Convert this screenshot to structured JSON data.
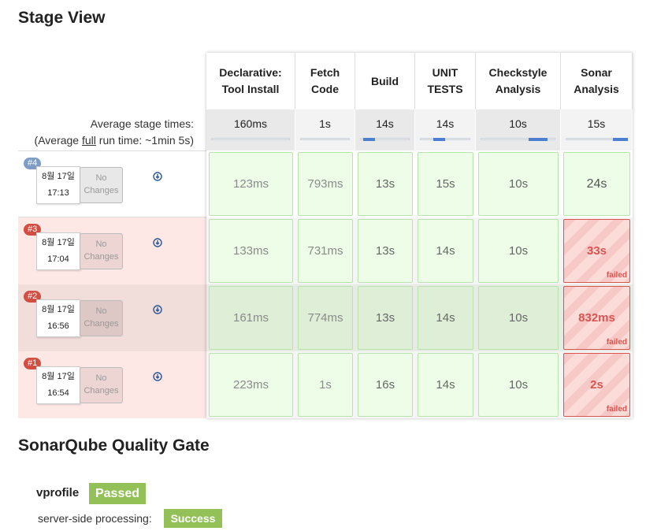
{
  "stage_view": {
    "title": "Stage View",
    "avg_label": "Average stage times:",
    "avg_full_prefix": "(Average ",
    "avg_full_link": "full",
    "avg_full_suffix": " run time: ~1min 5s)",
    "stages": [
      {
        "name_line1": "Declarative:",
        "name_line2": "Tool Install",
        "avg": "160ms",
        "bar_fraction": 0.0
      },
      {
        "name_line1": "Fetch",
        "name_line2": "Code",
        "avg": "1s",
        "bar_fraction": 0.0
      },
      {
        "name_line1": "Build",
        "name_line2": "",
        "avg": "14s",
        "bar_fraction": 0.25
      },
      {
        "name_line1": "UNIT",
        "name_line2": "TESTS",
        "avg": "14s",
        "bar_fraction": 0.25
      },
      {
        "name_line1": "Checkstyle",
        "name_line2": "Analysis",
        "avg": "10s",
        "bar_fraction": 0.25
      },
      {
        "name_line1": "Sonar",
        "name_line2": "Analysis",
        "avg": "15s",
        "bar_fraction": 0.25
      }
    ],
    "builds": [
      {
        "badge": "#4",
        "date": "8월 17일",
        "time": "17:13",
        "changes": "No Changes",
        "status": "success",
        "cells": [
          {
            "v": "123ms",
            "f": false
          },
          {
            "v": "793ms",
            "f": false
          },
          {
            "v": "13s",
            "f": false
          },
          {
            "v": "15s",
            "f": false
          },
          {
            "v": "10s",
            "f": false
          },
          {
            "v": "24s",
            "f": false
          }
        ]
      },
      {
        "badge": "#3",
        "date": "8월 17일",
        "time": "17:04",
        "changes": "No Changes",
        "status": "failed",
        "cells": [
          {
            "v": "133ms",
            "f": false
          },
          {
            "v": "731ms",
            "f": false
          },
          {
            "v": "13s",
            "f": false
          },
          {
            "v": "14s",
            "f": false
          },
          {
            "v": "10s",
            "f": false
          },
          {
            "v": "33s",
            "f": true
          }
        ]
      },
      {
        "badge": "#2",
        "date": "8월 17일",
        "time": "16:56",
        "changes": "No Changes",
        "status": "failed",
        "cells": [
          {
            "v": "161ms",
            "f": false
          },
          {
            "v": "774ms",
            "f": false
          },
          {
            "v": "13s",
            "f": false
          },
          {
            "v": "14s",
            "f": false
          },
          {
            "v": "10s",
            "f": false
          },
          {
            "v": "832ms",
            "f": true
          }
        ]
      },
      {
        "badge": "#1",
        "date": "8월 17일",
        "time": "16:54",
        "changes": "No Changes",
        "status": "failed",
        "cells": [
          {
            "v": "223ms",
            "f": false
          },
          {
            "v": "1s",
            "f": false
          },
          {
            "v": "16s",
            "f": false
          },
          {
            "v": "14s",
            "f": false
          },
          {
            "v": "10s",
            "f": false
          },
          {
            "v": "2s",
            "f": true
          }
        ]
      }
    ],
    "failed_label": "failed"
  },
  "quality_gate": {
    "title": "SonarQube Quality Gate",
    "project": "vprofile",
    "status": "Passed",
    "processing_label": "server-side processing:",
    "processing_status": "Success"
  },
  "colors": {
    "badge_success": "#7d9dc6",
    "badge_failed": "#d24d42",
    "row_failed_bg": "#fde8e6",
    "row_failed_bg_alt": "#f1ddda",
    "gate_green": "#94c157",
    "fail_red": "#d9534f"
  }
}
